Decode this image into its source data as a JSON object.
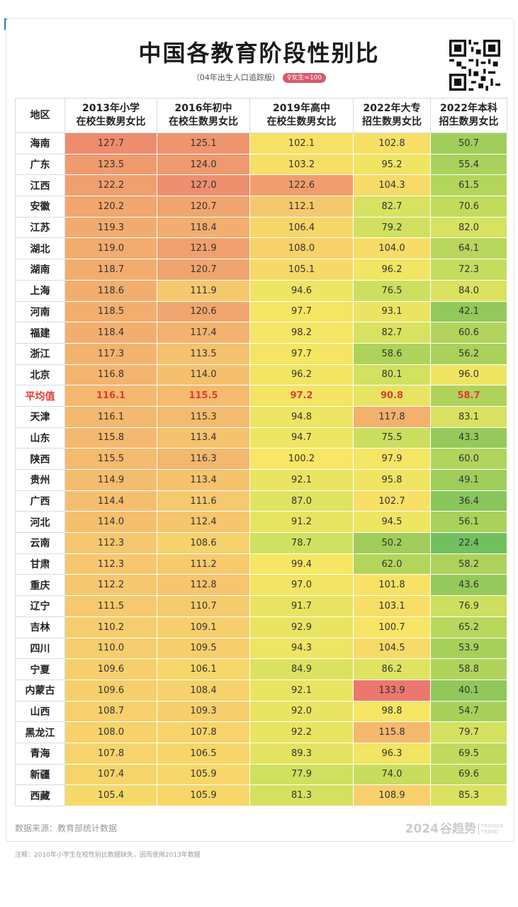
{
  "title": "中国各教育阶段性别比",
  "subtitle": "（04年出生人口追踪版）",
  "badge": "♀女生=100",
  "headers": [
    "地区",
    "2013年小学\n在校生数男女比",
    "2016年初中\n在校生数男女比",
    "2019年高中\n在校生数男女比",
    "2022年大专\n招生数男女比",
    "2022年本科\n招生数男女比"
  ],
  "rows": [
    {
      "region": "海南",
      "values": [
        "127.7",
        "125.1",
        "102.1",
        "102.8",
        "50.7"
      ]
    },
    {
      "region": "广东",
      "values": [
        "123.5",
        "124.0",
        "103.2",
        "95.2",
        "55.4"
      ]
    },
    {
      "region": "江西",
      "values": [
        "122.2",
        "127.0",
        "122.6",
        "104.3",
        "61.5"
      ]
    },
    {
      "region": "安徽",
      "values": [
        "120.2",
        "120.7",
        "112.1",
        "82.7",
        "70.6"
      ]
    },
    {
      "region": "江苏",
      "values": [
        "119.3",
        "118.4",
        "106.4",
        "79.2",
        "82.0"
      ]
    },
    {
      "region": "湖北",
      "values": [
        "119.0",
        "121.9",
        "108.0",
        "104.0",
        "64.1"
      ]
    },
    {
      "region": "湖南",
      "values": [
        "118.7",
        "120.7",
        "105.1",
        "96.2",
        "72.3"
      ]
    },
    {
      "region": "上海",
      "values": [
        "118.6",
        "111.9",
        "94.6",
        "76.5",
        "84.0"
      ]
    },
    {
      "region": "河南",
      "values": [
        "118.5",
        "120.6",
        "97.7",
        "93.1",
        "42.1"
      ]
    },
    {
      "region": "福建",
      "values": [
        "118.4",
        "117.4",
        "98.2",
        "82.7",
        "60.6"
      ]
    },
    {
      "region": "浙江",
      "values": [
        "117.3",
        "113.5",
        "97.7",
        "58.6",
        "56.2"
      ]
    },
    {
      "region": "北京",
      "values": [
        "116.8",
        "114.0",
        "96.2",
        "80.1",
        "96.0"
      ]
    },
    {
      "region": "平均值",
      "values": [
        "116.1",
        "115.5",
        "97.2",
        "90.8",
        "58.7"
      ],
      "avg": true
    },
    {
      "region": "天津",
      "values": [
        "116.1",
        "115.3",
        "94.8",
        "117.8",
        "83.1"
      ]
    },
    {
      "region": "山东",
      "values": [
        "115.8",
        "113.4",
        "94.7",
        "75.5",
        "43.3"
      ]
    },
    {
      "region": "陕西",
      "values": [
        "115.5",
        "116.3",
        "100.2",
        "97.9",
        "60.0"
      ]
    },
    {
      "region": "贵州",
      "values": [
        "114.9",
        "113.4",
        "92.1",
        "95.8",
        "49.1"
      ]
    },
    {
      "region": "广西",
      "values": [
        "114.4",
        "111.6",
        "87.0",
        "102.7",
        "36.4"
      ]
    },
    {
      "region": "河北",
      "values": [
        "114.0",
        "112.4",
        "91.2",
        "94.5",
        "56.1"
      ]
    },
    {
      "region": "云南",
      "values": [
        "112.3",
        "108.6",
        "78.7",
        "50.2",
        "22.4"
      ]
    },
    {
      "region": "甘肃",
      "values": [
        "112.3",
        "111.2",
        "99.4",
        "62.0",
        "58.2"
      ]
    },
    {
      "region": "重庆",
      "values": [
        "112.2",
        "112.8",
        "97.0",
        "101.8",
        "43.6"
      ]
    },
    {
      "region": "辽宁",
      "values": [
        "111.5",
        "110.7",
        "91.7",
        "103.1",
        "76.9"
      ]
    },
    {
      "region": "吉林",
      "values": [
        "110.2",
        "109.1",
        "92.9",
        "100.7",
        "65.2"
      ]
    },
    {
      "region": "四川",
      "values": [
        "110.0",
        "109.5",
        "94.3",
        "104.5",
        "53.9"
      ]
    },
    {
      "region": "宁夏",
      "values": [
        "109.6",
        "106.1",
        "84.9",
        "86.2",
        "58.8"
      ]
    },
    {
      "region": "内蒙古",
      "values": [
        "109.6",
        "108.4",
        "92.1",
        "133.9",
        "40.1"
      ]
    },
    {
      "region": "山西",
      "values": [
        "108.7",
        "109.3",
        "92.0",
        "98.8",
        "54.7"
      ]
    },
    {
      "region": "黑龙江",
      "values": [
        "108.0",
        "107.8",
        "92.2",
        "115.8",
        "79.7"
      ]
    },
    {
      "region": "青海",
      "values": [
        "107.8",
        "106.5",
        "89.3",
        "96.3",
        "69.5"
      ]
    },
    {
      "region": "新疆",
      "values": [
        "107.4",
        "105.9",
        "77.9",
        "74.0",
        "69.6"
      ]
    },
    {
      "region": "西藏",
      "values": [
        "105.4",
        "105.9",
        "81.3",
        "108.9",
        "85.3"
      ]
    }
  ],
  "source": "数据来源：教育部统计数据",
  "brand": "2024",
  "brand_name": "谷趋势",
  "brand_en": "TRIGGER TREND",
  "note": "注释：2010年小学生在校性别比数据缺失，因而使用2013年数据",
  "colors": {
    "accent_red": "#e53935",
    "border": "#cfdde8"
  }
}
